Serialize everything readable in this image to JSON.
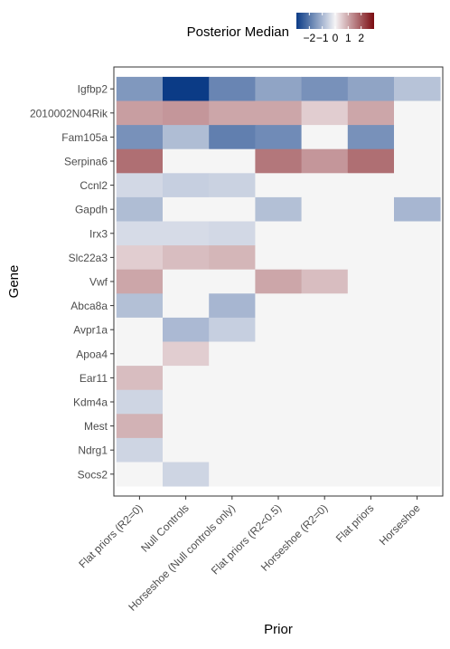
{
  "chart_data": {
    "type": "heatmap",
    "title": "",
    "xlabel": "Prior",
    "ylabel": "Gene",
    "legend": {
      "title": "Posterior Median",
      "position": "top",
      "ticks": [
        -2,
        -1,
        0,
        1,
        2
      ],
      "tick_labels": [
        "−2",
        "−1",
        "0",
        "1",
        "2"
      ],
      "range": [
        -3,
        3
      ]
    },
    "x_categories": [
      "Flat priors (R2=0)",
      "Null Controls",
      "Horseshoe (Null controls only)",
      "Flat priors (R2<0.5)",
      "Horseshoe (R2=0)",
      "Flat priors",
      "Horseshoe"
    ],
    "y_categories": [
      "Igfbp2",
      "2010002N04Rik",
      "Fam105a",
      "Serpina6",
      "Ccnl2",
      "Gapdh",
      "Irx3",
      "Slc22a3",
      "Vwf",
      "Abca8a",
      "Avpr1a",
      "Apoa4",
      "Ear11",
      "Kdm4a",
      "Mest",
      "Ndrg1",
      "Socs2"
    ],
    "values": [
      [
        -1.5,
        -3.0,
        -1.8,
        -1.3,
        -1.6,
        -1.3,
        -0.8
      ],
      [
        1.1,
        1.2,
        1.0,
        1.0,
        0.5,
        1.0,
        null
      ],
      [
        -1.6,
        -0.9,
        -1.9,
        -1.7,
        null,
        -1.6,
        null
      ],
      [
        1.7,
        null,
        null,
        1.6,
        1.2,
        1.7,
        null
      ],
      [
        -0.45,
        -0.6,
        -0.55,
        null,
        null,
        null,
        null
      ],
      [
        -0.9,
        null,
        null,
        -0.85,
        null,
        null,
        -1.0
      ],
      [
        -0.4,
        -0.4,
        -0.45,
        null,
        null,
        null,
        null
      ],
      [
        0.5,
        0.7,
        0.8,
        null,
        null,
        null,
        null
      ],
      [
        1.0,
        null,
        null,
        1.0,
        0.7,
        null,
        null
      ],
      [
        -0.85,
        null,
        -1.0,
        null,
        null,
        null,
        null
      ],
      [
        null,
        -0.95,
        -0.6,
        null,
        null,
        null,
        null
      ],
      [
        null,
        0.5,
        null,
        null,
        null,
        null,
        null
      ],
      [
        0.7,
        null,
        null,
        null,
        null,
        null,
        null
      ],
      [
        -0.5,
        null,
        null,
        null,
        null,
        null,
        null
      ],
      [
        0.85,
        null,
        null,
        null,
        null,
        null,
        null
      ],
      [
        -0.5,
        null,
        null,
        null,
        null,
        null,
        null
      ],
      [
        null,
        -0.5,
        null,
        null,
        null,
        null,
        null
      ]
    ],
    "colors": {
      "low": "#0b3b86",
      "mid": "#f5f4f6",
      "high": "#7a0a0f",
      "na": "#f5f5f5"
    }
  }
}
